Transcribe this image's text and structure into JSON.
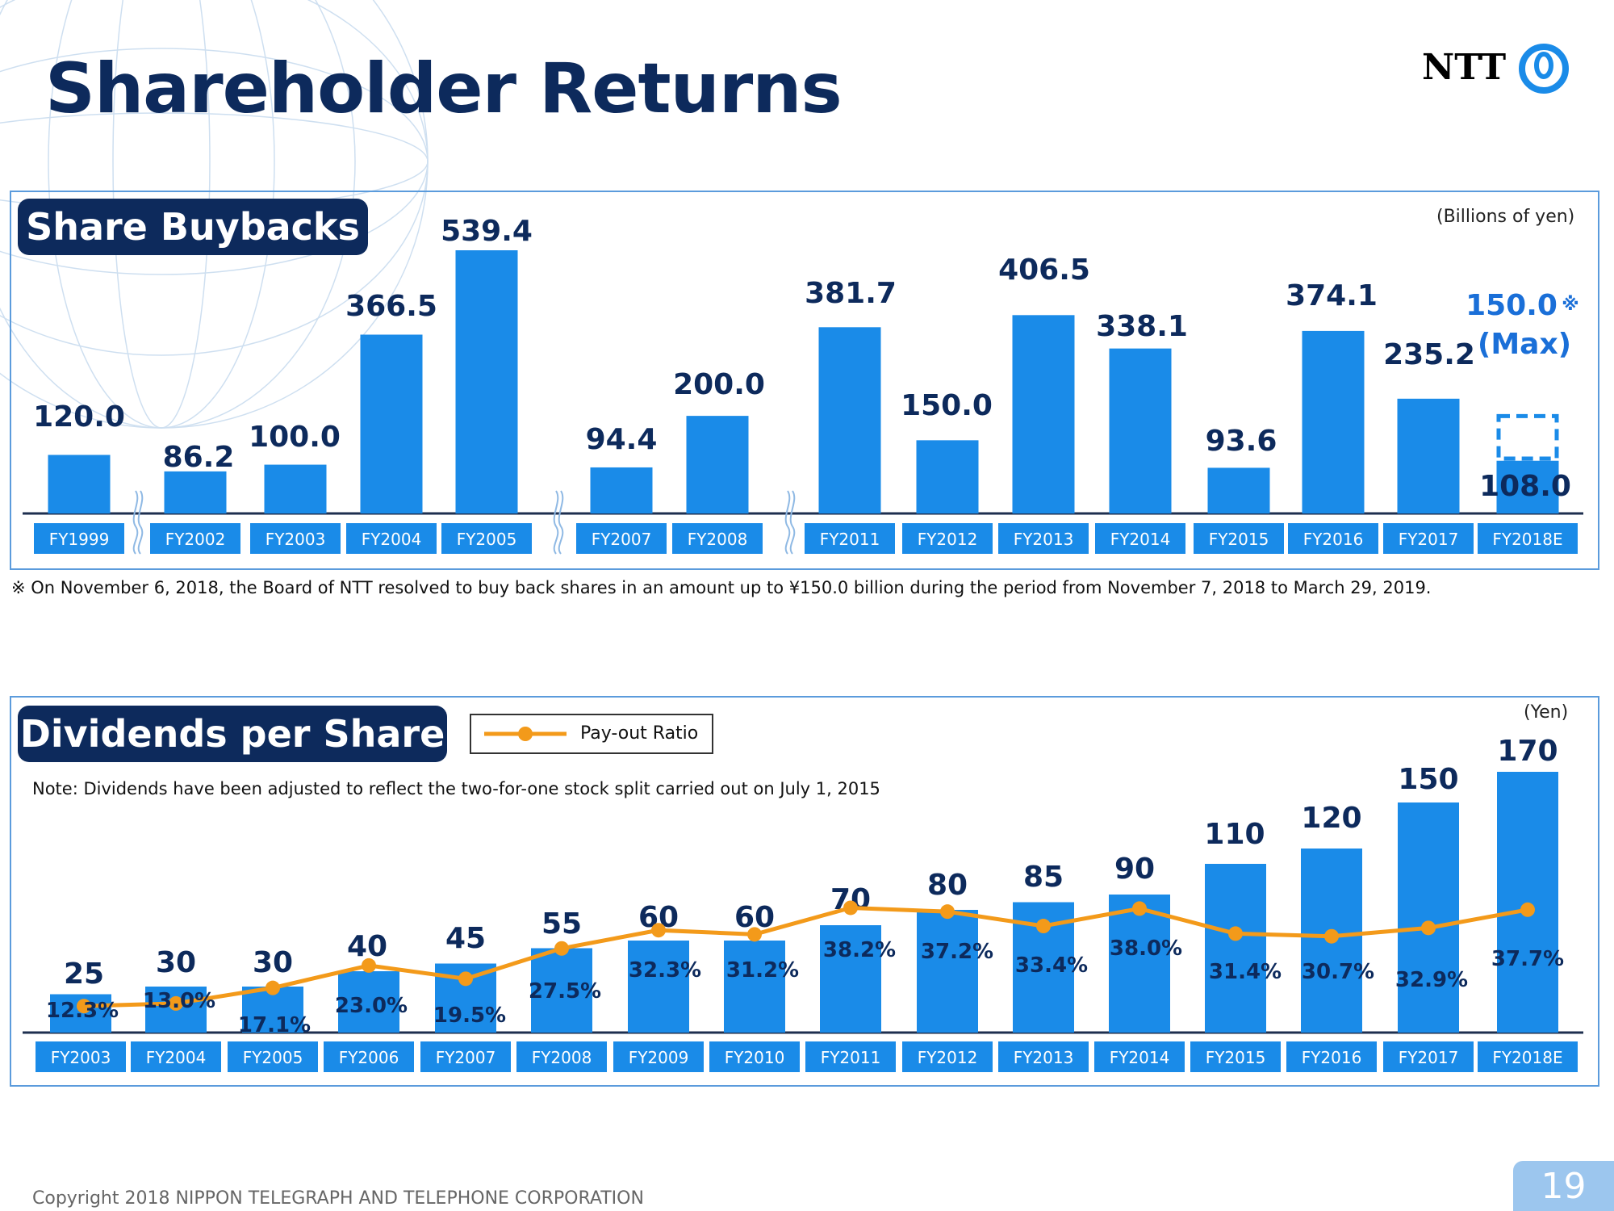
{
  "header": {
    "title": "Shareholder Returns",
    "logo_text": "NTT"
  },
  "colors": {
    "title_navy": "#0d2a5c",
    "bar_blue": "#1a8be8",
    "line_orange": "#f39a1a",
    "panel_border": "#5b9bdc",
    "page_badge": "#9cc6ee"
  },
  "buybacks": {
    "section_title": "Share Buybacks",
    "unit": "(Billions of yen)",
    "footnote": "※ On November 6, 2018, the Board of NTT resolved to buy back shares in an amount up to ¥150.0 billion during the period from November 7, 2018 to March 29, 2019.",
    "max_note": "(Max)",
    "max_mark": "※"
  },
  "dividends": {
    "section_title": "Dividends per Share",
    "unit": "(Yen)",
    "note": "Note: Dividends have been adjusted to reflect the two-for-one stock split carried out on July 1, 2015",
    "legend_label": "Pay-out Ratio"
  },
  "footer": {
    "copyright": "Copyright 2018 NIPPON TELEGRAPH AND TELEPHONE CORPORATION",
    "page_number": "19"
  },
  "chart_data": [
    {
      "type": "bar",
      "title": "Share Buybacks",
      "ylabel": "(Billions of yen)",
      "categories": [
        "FY1999",
        "FY2002",
        "FY2003",
        "FY2004",
        "FY2005",
        "FY2007",
        "FY2008",
        "FY2011",
        "FY2012",
        "FY2013",
        "FY2014",
        "FY2015",
        "FY2016",
        "FY2017",
        "FY2018E"
      ],
      "values": [
        120.0,
        86.2,
        100.0,
        366.5,
        539.4,
        94.4,
        200.0,
        381.7,
        150.0,
        406.5,
        338.1,
        93.6,
        374.1,
        235.2,
        108.0
      ],
      "labels": [
        "120.0",
        "86.2",
        "100.0",
        "366.5",
        "539.4",
        "94.4",
        "200.0",
        "381.7",
        "150.0",
        "406.5",
        "338.1",
        "93.6",
        "374.1",
        "235.2",
        "108.0"
      ],
      "axis_breaks_after": [
        "FY1999",
        "FY2005",
        "FY2008"
      ],
      "planned_max": {
        "category": "FY2018E",
        "value": 150.0,
        "label": "150.0"
      },
      "ylim": [
        0,
        560
      ],
      "grid": false
    },
    {
      "type": "bar+line",
      "title": "Dividends per Share",
      "ylabel": "(Yen)",
      "categories": [
        "FY2003",
        "FY2004",
        "FY2005",
        "FY2006",
        "FY2007",
        "FY2008",
        "FY2009",
        "FY2010",
        "FY2011",
        "FY2012",
        "FY2013",
        "FY2014",
        "FY2015",
        "FY2016",
        "FY2017",
        "FY2018E"
      ],
      "series": [
        {
          "type": "bar",
          "values": [
            25,
            30,
            30,
            40,
            45,
            55,
            60,
            60,
            70,
            80,
            85,
            90,
            110,
            120,
            150,
            170
          ],
          "labels": [
            "25",
            "30",
            "30",
            "40",
            "45",
            "55",
            "60",
            "60",
            "70",
            "80",
            "85",
            "90",
            "110",
            "120",
            "150",
            "170"
          ]
        },
        {
          "name": "Pay-out Ratio",
          "type": "line",
          "values": [
            12.3,
            13.0,
            17.1,
            23.0,
            19.5,
            27.5,
            32.3,
            31.2,
            38.2,
            37.2,
            33.4,
            38.0,
            31.4,
            30.7,
            32.9,
            37.7
          ],
          "labels": [
            "12.3%",
            "13.0%",
            "17.1%",
            "23.0%",
            "19.5%",
            "27.5%",
            "32.3%",
            "31.2%",
            "38.2%",
            "37.2%",
            "33.4%",
            "38.0%",
            "31.4%",
            "30.7%",
            "32.9%",
            "37.7%"
          ]
        }
      ],
      "ylim": [
        0,
        175
      ],
      "legend": "top-left",
      "grid": false
    }
  ]
}
